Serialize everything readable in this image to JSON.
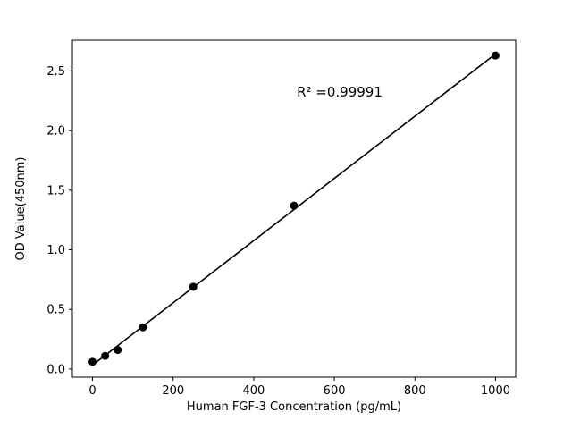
{
  "chart_data": {
    "type": "scatter",
    "title": "",
    "xlabel": "Human FGF-3 Concentration (pg/mL)",
    "ylabel": "OD Value(450nm)",
    "annotation": "R² =0.99991",
    "x": [
      0,
      31.25,
      62.5,
      125,
      250,
      500,
      1000
    ],
    "y": [
      0.06,
      0.11,
      0.16,
      0.35,
      0.69,
      1.37,
      2.63
    ],
    "xticks": [
      0,
      200,
      400,
      600,
      800,
      1000
    ],
    "yticks": [
      0.0,
      0.5,
      1.0,
      1.5,
      2.0,
      2.5
    ],
    "xlim": [
      -50,
      1050
    ],
    "ylim": [
      -0.0685,
      2.7585
    ],
    "legend": "none",
    "grid": false,
    "marker_color": "#000000",
    "line_color": "#000000",
    "background": "#ffffff"
  }
}
